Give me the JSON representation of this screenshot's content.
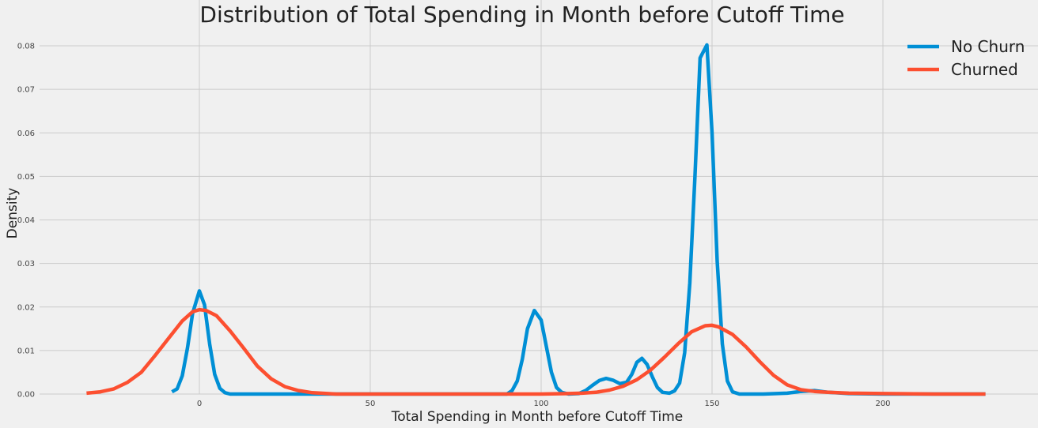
{
  "chart_data": {
    "type": "line",
    "title": "Distribution of Total Spending in Month before Cutoff Time",
    "xlabel": "Total Spending in Month before Cutoff Time",
    "ylabel": "Density",
    "xlim": [
      -33,
      232
    ],
    "ylim": [
      0,
      0.084
    ],
    "xticks": [
      0,
      50,
      100,
      150,
      200
    ],
    "yticks": [
      0.0,
      0.01,
      0.02,
      0.03,
      0.04,
      0.05,
      0.06,
      0.07,
      0.08
    ],
    "ytick_labels": [
      "0.00",
      "0.01",
      "0.02",
      "0.03",
      "0.04",
      "0.05",
      "0.06",
      "0.07",
      "0.08"
    ],
    "grid": true,
    "legend_position": "top-right",
    "series": [
      {
        "name": "No Churn",
        "color": "#008fd5",
        "points": [
          [
            -8,
            0.0005
          ],
          [
            -6.5,
            0.0012
          ],
          [
            -5,
            0.0042
          ],
          [
            -3.5,
            0.0105
          ],
          [
            -2,
            0.0185
          ],
          [
            0,
            0.0237
          ],
          [
            1.5,
            0.0205
          ],
          [
            3,
            0.0115
          ],
          [
            4.5,
            0.0045
          ],
          [
            6,
            0.0013
          ],
          [
            7.5,
            0.0003
          ],
          [
            9,
            0.0
          ],
          [
            20,
            0.0
          ],
          [
            40,
            0.0
          ],
          [
            60,
            0.0
          ],
          [
            80,
            0.0
          ],
          [
            90,
            0.0
          ],
          [
            91.5,
            0.0008
          ],
          [
            93,
            0.003
          ],
          [
            94.5,
            0.008
          ],
          [
            96,
            0.015
          ],
          [
            98,
            0.0192
          ],
          [
            100,
            0.017
          ],
          [
            101.5,
            0.011
          ],
          [
            103,
            0.005
          ],
          [
            104.5,
            0.0015
          ],
          [
            106,
            0.0004
          ],
          [
            108,
            0.0
          ],
          [
            111,
            0.0001
          ],
          [
            113,
            0.0008
          ],
          [
            115,
            0.002
          ],
          [
            117,
            0.0031
          ],
          [
            119,
            0.0036
          ],
          [
            121,
            0.0032
          ],
          [
            123,
            0.0024
          ],
          [
            125,
            0.0027
          ],
          [
            126.5,
            0.0045
          ],
          [
            128,
            0.0073
          ],
          [
            129.5,
            0.0082
          ],
          [
            131,
            0.0068
          ],
          [
            132.5,
            0.004
          ],
          [
            134,
            0.0015
          ],
          [
            135.5,
            0.0004
          ],
          [
            137.5,
            0.0002
          ],
          [
            139,
            0.0007
          ],
          [
            140.5,
            0.0025
          ],
          [
            142,
            0.0095
          ],
          [
            143.5,
            0.0255
          ],
          [
            145,
            0.05
          ],
          [
            146.5,
            0.0772
          ],
          [
            148.5,
            0.0802
          ],
          [
            150,
            0.06
          ],
          [
            151.5,
            0.0305
          ],
          [
            153,
            0.0115
          ],
          [
            154.5,
            0.003
          ],
          [
            156,
            0.0005
          ],
          [
            158,
            0.0
          ],
          [
            165,
            0.0
          ],
          [
            172,
            0.0002
          ],
          [
            176,
            0.0006
          ],
          [
            180,
            0.0008
          ],
          [
            184,
            0.0004
          ],
          [
            190,
            0.0001
          ],
          [
            200,
            0.0
          ],
          [
            215,
            0.0
          ],
          [
            230,
            0.0
          ]
        ]
      },
      {
        "name": "Churned",
        "color": "#fc4f30",
        "points": [
          [
            -33,
            0.0002
          ],
          [
            -29,
            0.0005
          ],
          [
            -25,
            0.0012
          ],
          [
            -21,
            0.0027
          ],
          [
            -17,
            0.005
          ],
          [
            -13,
            0.0088
          ],
          [
            -9,
            0.0128
          ],
          [
            -5,
            0.0168
          ],
          [
            -2,
            0.0189
          ],
          [
            0,
            0.0194
          ],
          [
            2,
            0.0192
          ],
          [
            5,
            0.018
          ],
          [
            9,
            0.0145
          ],
          [
            13,
            0.0105
          ],
          [
            17,
            0.0064
          ],
          [
            21,
            0.0035
          ],
          [
            25,
            0.0017
          ],
          [
            29,
            0.0008
          ],
          [
            33,
            0.0003
          ],
          [
            40,
            0.0
          ],
          [
            60,
            0.0
          ],
          [
            80,
            0.0
          ],
          [
            100,
            0.0
          ],
          [
            108,
            0.0001
          ],
          [
            112,
            0.0002
          ],
          [
            116,
            0.0004
          ],
          [
            120,
            0.0009
          ],
          [
            124,
            0.0018
          ],
          [
            128,
            0.0033
          ],
          [
            132,
            0.0055
          ],
          [
            136,
            0.0084
          ],
          [
            140,
            0.0115
          ],
          [
            144,
            0.0143
          ],
          [
            148,
            0.0157
          ],
          [
            150,
            0.0158
          ],
          [
            152,
            0.0154
          ],
          [
            156,
            0.0137
          ],
          [
            160,
            0.0108
          ],
          [
            164,
            0.0074
          ],
          [
            168,
            0.0043
          ],
          [
            172,
            0.0021
          ],
          [
            176,
            0.001
          ],
          [
            180,
            0.0006
          ],
          [
            184,
            0.0004
          ],
          [
            190,
            0.0002
          ],
          [
            200,
            0.0001
          ],
          [
            215,
            0.0
          ],
          [
            230,
            0.0
          ]
        ]
      }
    ]
  }
}
